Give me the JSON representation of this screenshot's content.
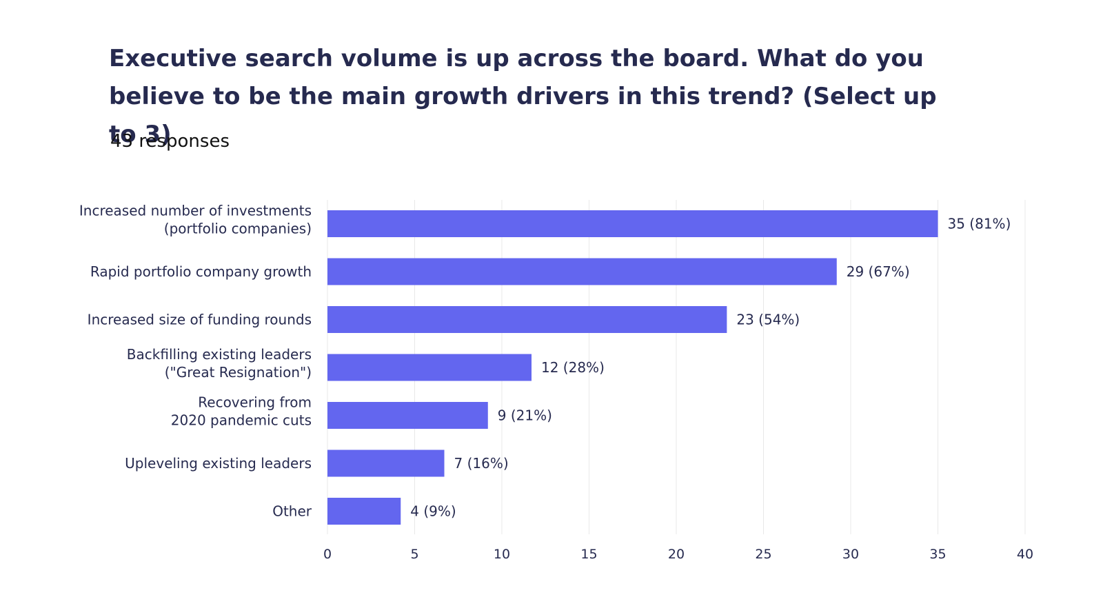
{
  "chart_data": {
    "type": "bar",
    "orientation": "horizontal",
    "title": "Executive search volume is up across the board.  What do you believe to be the main growth drivers in this trend?  (Select up to 3)",
    "subtitle": "43 responses",
    "categories": [
      [
        "Increased number of investments",
        "(portfolio companies)"
      ],
      [
        "Rapid portfolio company growth"
      ],
      [
        "Increased size of funding rounds"
      ],
      [
        "Backfilling existing leaders",
        "(\"Great Resignation\")"
      ],
      [
        "Recovering from",
        "2020 pandemic cuts"
      ],
      [
        "Upleveling existing leaders"
      ],
      [
        "Other"
      ]
    ],
    "values": [
      35,
      29.2,
      22.9,
      11.7,
      9.2,
      6.7,
      4.2
    ],
    "value_labels": [
      "35 (81%)",
      "29 (67%)",
      "23 (54%)",
      "12 (28%)",
      "9 (21%)",
      "7 (16%)",
      "4 (9%)"
    ],
    "xlim": [
      0,
      40
    ],
    "xticks": [
      0,
      5,
      10,
      15,
      20,
      25,
      30,
      35,
      40
    ],
    "grid": true,
    "bar_color": "#6366ef",
    "grid_color": "#e8e8e8"
  }
}
